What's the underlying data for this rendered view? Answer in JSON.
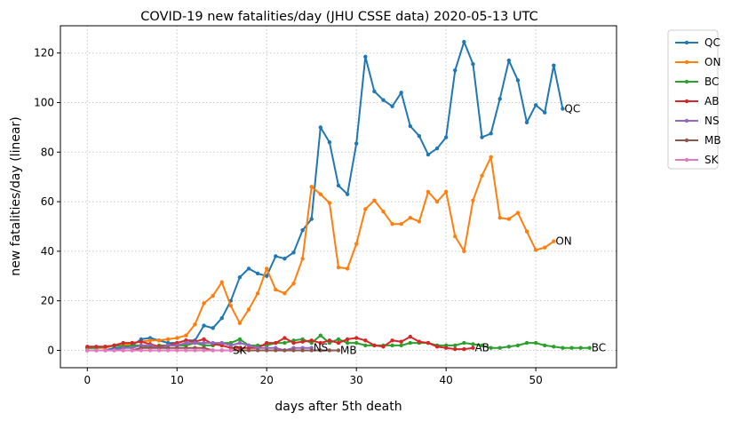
{
  "chart_data": {
    "type": "line",
    "title": "COVID-19 new fatalities/day (JHU CSSE data) 2020-05-13 UTC",
    "xlabel": "days after 5th death",
    "ylabel": "new fatalities/day (linear)",
    "xlim": [
      -3,
      59
    ],
    "ylim": [
      -7,
      131
    ],
    "xticks": [
      0,
      10,
      20,
      30,
      40,
      50
    ],
    "yticks": [
      0,
      20,
      40,
      60,
      80,
      100,
      120
    ],
    "grid": true,
    "legend_position": "outside-right-top",
    "series": [
      {
        "name": "QC",
        "color": "#1f77b4",
        "x": [
          0,
          1,
          2,
          3,
          4,
          5,
          6,
          7,
          8,
          9,
          10,
          11,
          12,
          13,
          14,
          15,
          16,
          17,
          18,
          19,
          20,
          21,
          22,
          23,
          24,
          25,
          26,
          27,
          28,
          29,
          30,
          31,
          32,
          33,
          34,
          35,
          36,
          37,
          38,
          39,
          40,
          41,
          42,
          43,
          44,
          45,
          46,
          47,
          48,
          49,
          50,
          51,
          52,
          53
        ],
        "y": [
          0,
          0,
          0,
          1,
          1,
          2,
          4.5,
          5,
          4,
          3,
          3,
          4,
          4,
          10,
          9,
          13,
          20,
          29.5,
          33,
          31,
          30,
          38,
          37,
          39.5,
          48.5,
          53,
          90,
          84,
          66.5,
          63,
          83.5,
          118.5,
          104.5,
          101,
          98.5,
          104,
          90.5,
          86.5,
          79,
          81.5,
          86,
          113,
          124.5,
          115.5,
          86,
          87.5,
          101.5,
          117,
          109,
          92,
          99,
          96,
          115,
          97.5
        ]
      },
      {
        "name": "ON",
        "color": "#ff7f0e",
        "x": [
          0,
          1,
          2,
          3,
          4,
          5,
          6,
          7,
          8,
          9,
          10,
          11,
          12,
          13,
          14,
          15,
          16,
          17,
          18,
          19,
          20,
          21,
          22,
          23,
          24,
          25,
          26,
          27,
          28,
          29,
          30,
          31,
          32,
          33,
          34,
          35,
          36,
          37,
          38,
          39,
          40,
          41,
          42,
          43,
          44,
          45,
          46,
          47,
          48,
          49,
          50,
          51,
          52
        ],
        "y": [
          1,
          1,
          1,
          2,
          2,
          3,
          3.5,
          4,
          4,
          4.5,
          5,
          6,
          10.5,
          19,
          22,
          27.5,
          18,
          11,
          16.5,
          23,
          33,
          24.5,
          23,
          27,
          37,
          66,
          63,
          59.5,
          33.5,
          33,
          43,
          57,
          60.5,
          56,
          51,
          51,
          53.5,
          52,
          64,
          60,
          64,
          46,
          40,
          60.5,
          70.5,
          78,
          53.5,
          53,
          55.5,
          48,
          40.5,
          41.5,
          44
        ]
      },
      {
        "name": "BC",
        "color": "#2ca02c",
        "x": [
          0,
          1,
          2,
          3,
          4,
          5,
          6,
          7,
          8,
          9,
          10,
          11,
          12,
          13,
          14,
          15,
          16,
          17,
          18,
          19,
          20,
          21,
          22,
          23,
          24,
          25,
          26,
          27,
          28,
          29,
          30,
          31,
          32,
          33,
          34,
          35,
          36,
          37,
          38,
          39,
          40,
          41,
          42,
          43,
          44,
          45,
          46,
          47,
          48,
          49,
          50,
          51,
          52,
          53,
          54,
          55,
          56
        ],
        "y": [
          1,
          1,
          1.5,
          2,
          1.5,
          2,
          2,
          1,
          2,
          2,
          2,
          2,
          3,
          2,
          2,
          3,
          3,
          4.5,
          2,
          2,
          2,
          3,
          3,
          4,
          4.5,
          3,
          6,
          3,
          4.5,
          3,
          3,
          2,
          2,
          2,
          2,
          2,
          3,
          3,
          3,
          2,
          2,
          2,
          3,
          2.5,
          2,
          1,
          1,
          1.5,
          2,
          3,
          3,
          2,
          1.5,
          1,
          1,
          1,
          1
        ]
      },
      {
        "name": "AB",
        "color": "#d62728",
        "x": [
          0,
          1,
          2,
          3,
          4,
          5,
          6,
          7,
          8,
          9,
          10,
          11,
          12,
          13,
          14,
          15,
          16,
          17,
          18,
          19,
          20,
          21,
          22,
          23,
          24,
          25,
          26,
          27,
          28,
          29,
          30,
          31,
          32,
          33,
          34,
          35,
          36,
          37,
          38,
          39,
          40,
          41,
          42,
          43
        ],
        "y": [
          1.5,
          1.5,
          1.5,
          2,
          3,
          3,
          3.5,
          2.5,
          1.5,
          2,
          3,
          4,
          3.5,
          4.5,
          2.5,
          2,
          1,
          1,
          1,
          1,
          3,
          3,
          5,
          3,
          3.5,
          4,
          3,
          4,
          3,
          4.5,
          5,
          4,
          2,
          1.5,
          4,
          3.5,
          5.5,
          3.5,
          3,
          1.5,
          1,
          0.5,
          0.5,
          1
        ]
      },
      {
        "name": "NS",
        "color": "#9467bd",
        "x": [
          0,
          1,
          2,
          3,
          4,
          5,
          6,
          7,
          8,
          9,
          10,
          11,
          12,
          13,
          14,
          15,
          16,
          17,
          18,
          19,
          20,
          21,
          22,
          23,
          24,
          25
        ],
        "y": [
          0,
          0,
          0,
          0,
          1,
          1,
          2,
          2,
          1,
          2,
          2,
          3,
          3,
          3,
          3,
          3,
          2,
          3,
          2,
          1,
          1,
          1,
          0,
          1,
          1,
          1
        ]
      },
      {
        "name": "MB",
        "color": "#8c564b",
        "x": [
          0,
          1,
          2,
          3,
          4,
          5,
          6,
          7,
          8,
          9,
          10,
          11,
          12,
          13,
          14,
          15,
          16,
          17,
          18,
          19,
          20,
          21,
          22,
          23,
          24,
          25,
          26,
          27,
          28
        ],
        "y": [
          0,
          0,
          0,
          0,
          0,
          0,
          1,
          1,
          1,
          1,
          1,
          1,
          1,
          1,
          0,
          0,
          0,
          0,
          0,
          0,
          0,
          0,
          0,
          0,
          0,
          0,
          0,
          0,
          0
        ]
      },
      {
        "name": "SK",
        "color": "#e377c2",
        "x": [
          0,
          1,
          2,
          3,
          4,
          5,
          6,
          7,
          8,
          9,
          10,
          11,
          12,
          13,
          14,
          15,
          16
        ],
        "y": [
          0,
          0,
          0,
          0,
          0,
          0,
          0,
          0,
          0,
          0,
          0,
          0,
          0,
          0,
          0,
          0,
          0
        ]
      }
    ]
  }
}
